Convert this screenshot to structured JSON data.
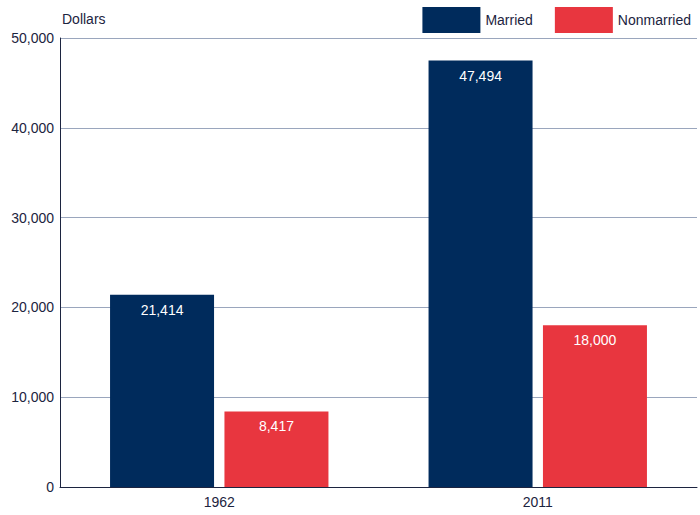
{
  "chart_data": {
    "type": "bar",
    "y_label": "Dollars",
    "categories": [
      "1962",
      "2011"
    ],
    "series": [
      {
        "name": "Married",
        "color": "#002b5c",
        "values": [
          21414,
          47494
        ],
        "value_labels": [
          "21,414",
          "47,494"
        ]
      },
      {
        "name": "Nonmarried",
        "color": "#e8363f",
        "values": [
          8417,
          18000
        ],
        "value_labels": [
          "8,417",
          "18,000"
        ]
      }
    ],
    "ylim": [
      0,
      50000
    ],
    "yticks": [
      0,
      {
        "value": 10000,
        "label": "10,000"
      },
      {
        "value": 20000,
        "label": "20,000"
      },
      {
        "value": 30000,
        "label": "30,000"
      },
      {
        "value": 40000,
        "label": "40,000"
      },
      {
        "value": 50000,
        "label": "50,000"
      }
    ],
    "grid": true,
    "legend": "upper right",
    "data_labels": true
  }
}
